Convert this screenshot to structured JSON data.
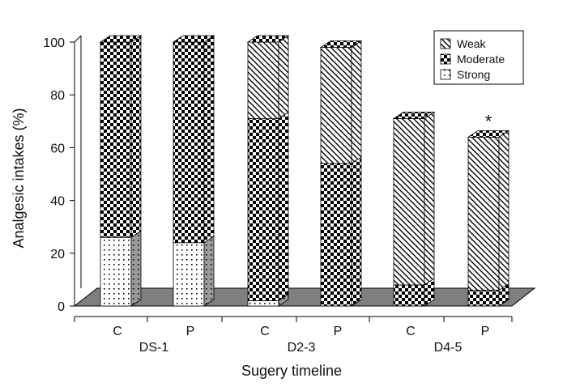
{
  "chart_data": {
    "type": "bar",
    "stacked": true,
    "three_d": true,
    "title": "",
    "xlabel": "Sugery timeline",
    "ylabel": "Analgesic intakes (%)",
    "ylim": [
      0,
      100
    ],
    "yticks": [
      "0",
      "20",
      "40",
      "60",
      "80",
      "100"
    ],
    "groups": [
      "DS-1",
      "D2-3",
      "D4-5"
    ],
    "categories": [
      "C",
      "P",
      "C",
      "P",
      "C",
      "P"
    ],
    "series": [
      {
        "name": "Strong",
        "values": [
          26,
          24,
          2,
          0,
          0,
          0
        ]
      },
      {
        "name": "Moderate",
        "values": [
          74,
          76,
          69,
          54,
          8,
          6
        ]
      },
      {
        "name": "Weak",
        "values": [
          0,
          0,
          29,
          44,
          63,
          58
        ]
      }
    ],
    "annotations": [
      {
        "text": "*",
        "bar_index": 5
      }
    ],
    "legend": {
      "position": "top-right",
      "order": [
        "Weak",
        "Moderate",
        "Strong"
      ]
    },
    "grid": false,
    "colors": {
      "floor": "#7f7f7f",
      "ink": "#000000",
      "background": "#ffffff"
    }
  }
}
